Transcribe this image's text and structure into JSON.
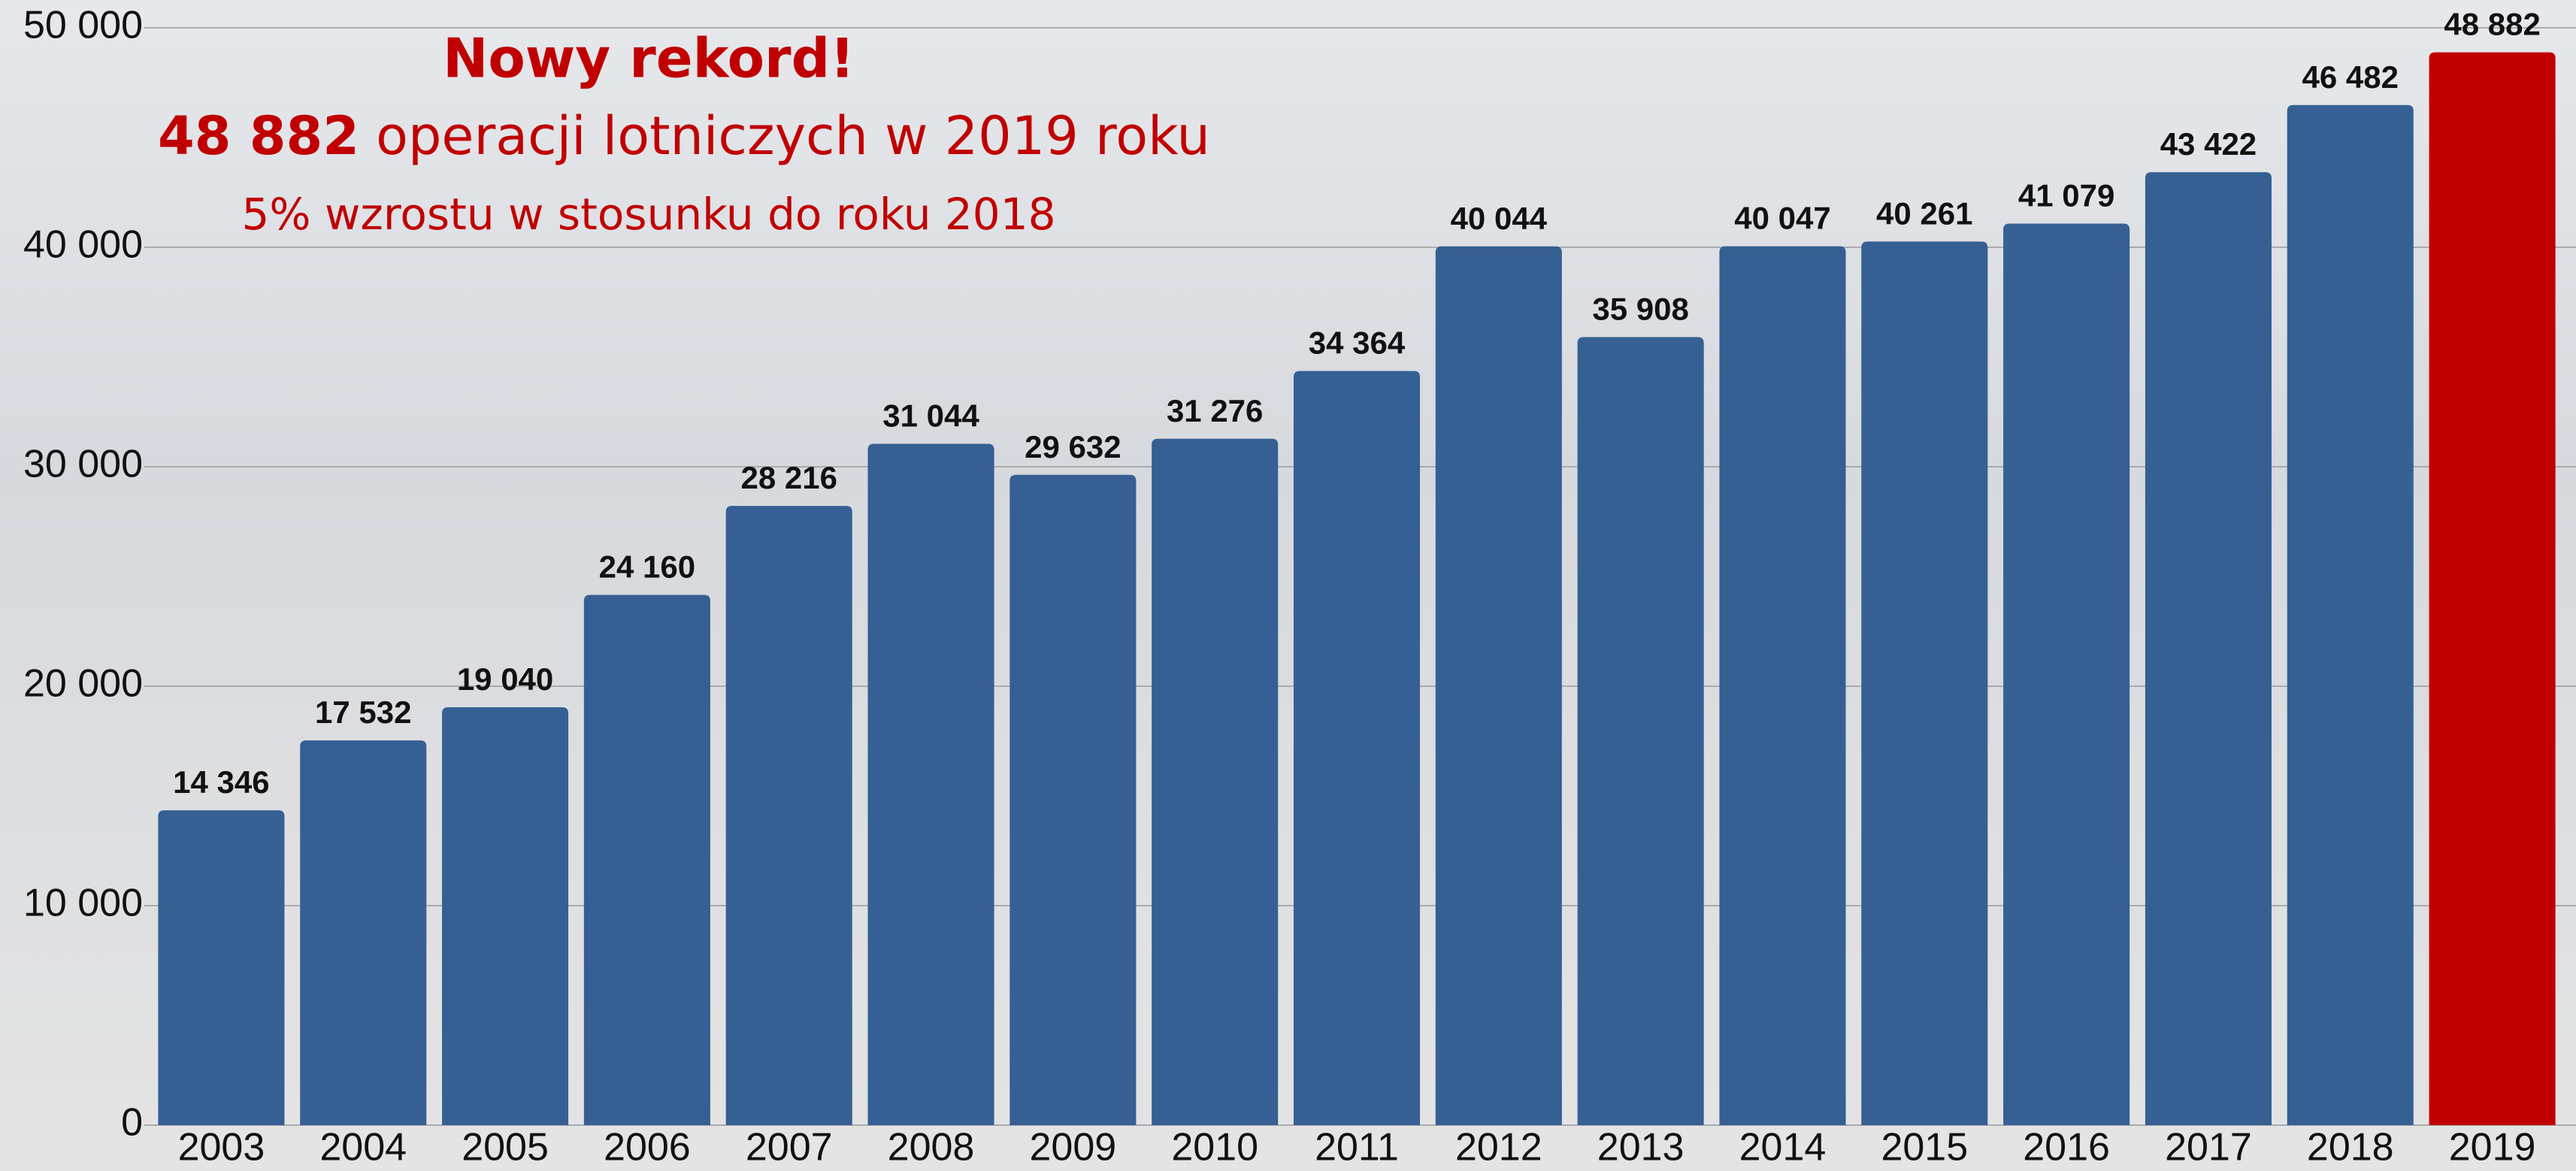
{
  "chart_data": {
    "type": "bar",
    "title": "Nowy rekord!",
    "subtitle_highlight": "48 882",
    "subtitle": "operacji lotniczych w 2019 roku",
    "note": "5% wzrostu w stosunku do roku 2018",
    "categories": [
      "2003",
      "2004",
      "2005",
      "2006",
      "2007",
      "2008",
      "2009",
      "2010",
      "2011",
      "2012",
      "2013",
      "2014",
      "2015",
      "2016",
      "2017",
      "2018",
      "2019"
    ],
    "values": [
      14346,
      17532,
      19040,
      24160,
      28216,
      31044,
      29632,
      31276,
      34364,
      40044,
      35908,
      40047,
      40261,
      41079,
      43422,
      46482,
      48882
    ],
    "value_labels": [
      "14 346",
      "17 532",
      "19 040",
      "24 160",
      "28 216",
      "31 044",
      "29 632",
      "31 276",
      "34 364",
      "40 044",
      "35 908",
      "40 047",
      "40 261",
      "41 079",
      "43 422",
      "46 482",
      "48 882"
    ],
    "colors": [
      "#365f93",
      "#365f93",
      "#365f93",
      "#365f93",
      "#365f93",
      "#365f93",
      "#365f93",
      "#365f93",
      "#365f93",
      "#365f93",
      "#365f93",
      "#365f93",
      "#365f93",
      "#365f93",
      "#365f93",
      "#365f93",
      "#c00000"
    ],
    "ylim": [
      0,
      50000
    ],
    "yticks": [
      0,
      {
        "value": 10000,
        "label": "10 000"
      },
      {
        "value": 20000,
        "label": "20 000"
      },
      {
        "value": 30000,
        "label": "30 000"
      },
      {
        "value": 40000,
        "label": "40 000"
      },
      {
        "value": 50000,
        "label": "50 000"
      }
    ],
    "grid": true
  }
}
